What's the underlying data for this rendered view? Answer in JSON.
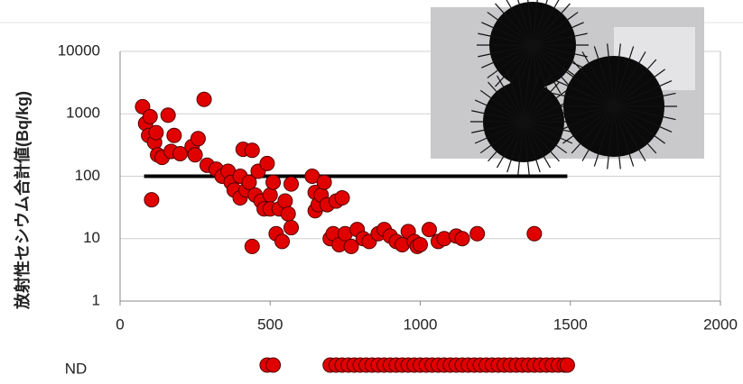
{
  "chart_data": {
    "type": "scatter",
    "y_label": "放射性セシウム合計値(Bq/kg)",
    "log_y": true,
    "grid": true,
    "color": "#e00000",
    "xlim": [
      0,
      2000
    ],
    "xticks": [
      0,
      500,
      1000,
      1500,
      2000
    ],
    "ylim": [
      1,
      10000
    ],
    "yticks": [
      1,
      10,
      100,
      1000,
      10000
    ],
    "x": [
      75,
      85,
      95,
      100,
      105,
      115,
      120,
      125,
      140,
      160,
      170,
      180,
      200,
      240,
      250,
      260,
      280,
      290,
      320,
      340,
      360,
      370,
      380,
      400,
      400,
      410,
      420,
      430,
      440,
      440,
      450,
      460,
      470,
      480,
      490,
      500,
      500,
      510,
      520,
      530,
      540,
      550,
      560,
      570,
      570,
      640,
      650,
      650,
      660,
      670,
      680,
      690,
      700,
      710,
      720,
      730,
      740,
      750,
      770,
      790,
      810,
      830,
      860,
      880,
      900,
      920,
      940,
      960,
      980,
      990,
      1000,
      1030,
      1060,
      1080,
      1120,
      1140,
      1190,
      1380
    ],
    "values": [
      1300,
      700,
      450,
      900,
      42,
      350,
      500,
      220,
      200,
      950,
      250,
      450,
      230,
      300,
      220,
      400,
      1700,
      150,
      130,
      100,
      120,
      80,
      60,
      45,
      100,
      270,
      60,
      80,
      260,
      7.5,
      50,
      120,
      40,
      30,
      160,
      50,
      30,
      80,
      12,
      30,
      9,
      40,
      25,
      15,
      75,
      100,
      55,
      28,
      35,
      50,
      80,
      35,
      10,
      12,
      40,
      8,
      45,
      12,
      7.5,
      14,
      10,
      9,
      12,
      14,
      11,
      9,
      8,
      13,
      9,
      7.5,
      8,
      14,
      9,
      10,
      11,
      10,
      12,
      12
    ],
    "reference_line": {
      "value": 100,
      "x": [
        80,
        1490
      ]
    },
    "nd_label": "ND",
    "nd_x": [
      490,
      510,
      700,
      720,
      740,
      760,
      780,
      800,
      820,
      840,
      860,
      880,
      900,
      920,
      940,
      960,
      980,
      1000,
      1020,
      1040,
      1060,
      1080,
      1100,
      1120,
      1140,
      1160,
      1180,
      1200,
      1220,
      1240,
      1260,
      1280,
      1300,
      1320,
      1340,
      1360,
      1380,
      1400,
      1420,
      1440,
      1460,
      1480,
      1490
    ]
  }
}
